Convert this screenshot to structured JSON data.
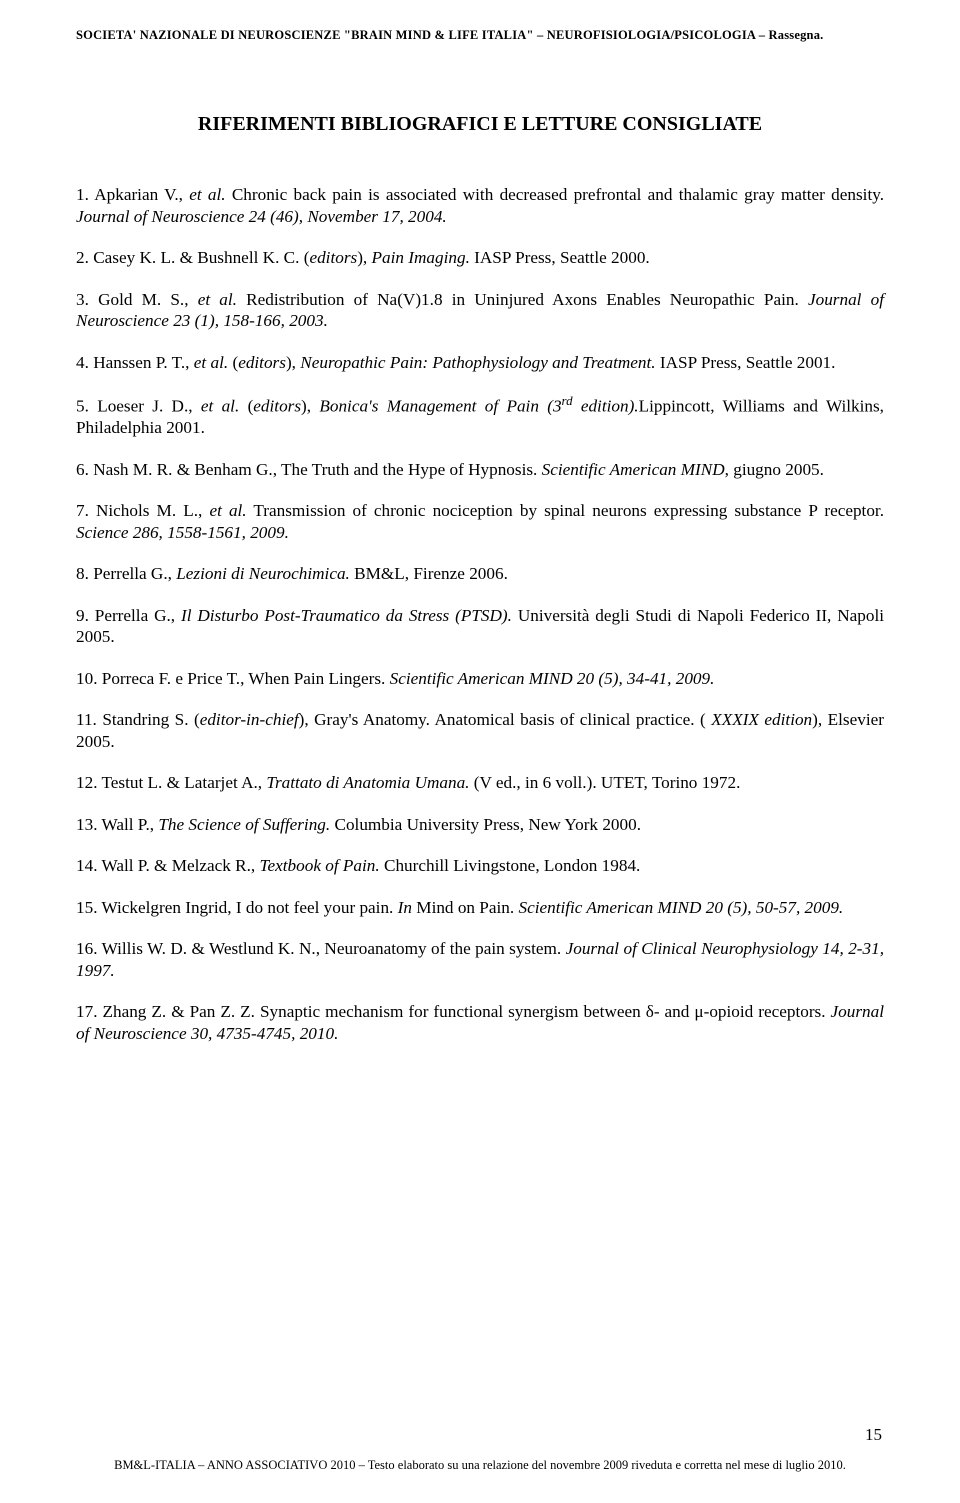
{
  "header": "SOCIETA' NAZIONALE DI NEUROSCIENZE \"BRAIN MIND & LIFE ITALIA\" – NEUROFISIOLOGIA/PSICOLOGIA – Rassegna.",
  "title": "RIFERIMENTI BIBLIOGRAFICI E LETTURE CONSIGLIATE",
  "refs": {
    "r1a": "1. Apkarian V., ",
    "r1b": "et al.",
    "r1c": " Chronic back pain is associated with decreased prefrontal and thalamic gray matter density. ",
    "r1d": "Journal of Neuroscience 24 (46), November 17, 2004.",
    "r2a": "2. Casey K. L. & Bushnell K. C. (",
    "r2b": "editors",
    "r2c": "), ",
    "r2d": "Pain Imaging.",
    "r2e": " IASP Press, Seattle 2000.",
    "r3a": "3. Gold M. S., ",
    "r3b": "et al.",
    "r3c": " Redistribution of Na(V)1.8 in Uninjured Axons Enables Neuropathic Pain. ",
    "r3d": "Journal of Neuroscience 23 (1), 158-166, 2003.",
    "r4a": "4. Hanssen P. T., ",
    "r4b": "et al.",
    "r4c": " (",
    "r4d": "editors",
    "r4e": "), ",
    "r4f": "Neuropathic Pain: Pathophysiology and Treatment.",
    "r4g": " IASP Press, Seattle 2001.",
    "r5a": "5. Loeser J. D., ",
    "r5b": "et al.",
    "r5c": " (",
    "r5d": "editors",
    "r5e": "), ",
    "r5f": "Bonica's Management of Pain (3",
    "r5g": "rd",
    "r5h": " edition).",
    "r5i": "Lippincott, Williams and Wilkins, Philadelphia 2001.",
    "r6a": "6. Nash M. R. & Benham G., The Truth and the Hype of Hypnosis. ",
    "r6b": "Scientific American MIND",
    "r6c": ", giugno 2005.",
    "r7a": "7. Nichols M. L., ",
    "r7b": "et al.",
    "r7c": " Transmission of chronic nociception by spinal neurons expressing substance P receptor. ",
    "r7d": "Science 286, 1558-1561, 2009.",
    "r8a": "8. Perrella G., ",
    "r8b": "Lezioni di Neurochimica.",
    "r8c": " BM&L, Firenze 2006.",
    "r9a": "9. Perrella G., ",
    "r9b": "Il Disturbo Post-Traumatico da Stress (PTSD).",
    "r9c": " Università degli Studi di Napoli Federico II, Napoli 2005.",
    "r10a": "10. Porreca F. e Price T., When Pain Lingers. ",
    "r10b": "Scientific American MIND 20 (5), 34-41, 2009.",
    "r11a": "11. Standring S. (",
    "r11b": "editor-in-chief",
    "r11c": "), Gray's Anatomy. Anatomical basis of clinical practice. ( ",
    "r11d": "XXXIX edition",
    "r11e": "), Elsevier 2005.",
    "r12a": "12. Testut L. & Latarjet A., ",
    "r12b": "Trattato di Anatomia Umana.",
    "r12c": " (V ed., in 6 voll.). UTET, Torino 1972.",
    "r13a": "13. Wall P., ",
    "r13b": "The Science of Suffering.",
    "r13c": " Columbia University Press, New York 2000.",
    "r14a": "14. Wall P. & Melzack R., ",
    "r14b": "Textbook of Pain.",
    "r14c": " Churchill Livingstone, London 1984.",
    "r15a": "15. Wickelgren Ingrid, I do not feel your pain. ",
    "r15b": "In",
    "r15c": " Mind on Pain. ",
    "r15d": "Scientific American MIND 20 (5), 50-57, 2009.",
    "r16a": "16. Willis W. D. & Westlund K. N., Neuroanatomy of the pain system. ",
    "r16b": "Journal of Clinical Neurophysiology 14, 2-31, 1997.",
    "r17a": "17. Zhang Z. & Pan Z. Z. Synaptic mechanism for functional synergism between δ- and μ-opioid receptors. ",
    "r17b": "Journal of Neuroscience 30, 4735-4745, 2010."
  },
  "page_number": "15",
  "footer": "BM&L-ITALIA – ANNO ASSOCIATIVO 2010 – Testo elaborato su una relazione del novembre 2009 riveduta e corretta nel mese di luglio 2010."
}
